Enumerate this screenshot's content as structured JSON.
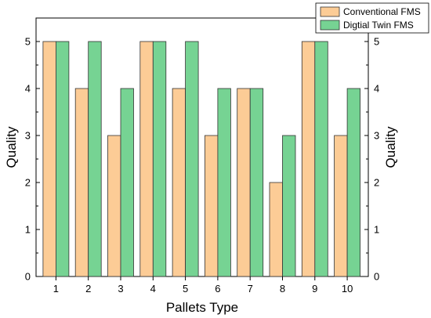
{
  "chart_data": {
    "type": "bar",
    "categories": [
      "1",
      "2",
      "3",
      "4",
      "5",
      "6",
      "7",
      "8",
      "9",
      "10"
    ],
    "series": [
      {
        "name": "Conventional FMS",
        "color": "#FCCC96",
        "values": [
          5,
          4,
          3,
          5,
          4,
          3,
          4,
          2,
          5,
          3
        ]
      },
      {
        "name": "Digtial Twin FMS",
        "color": "#76D393",
        "values": [
          5,
          5,
          4,
          5,
          5,
          4,
          4,
          3,
          5,
          4
        ]
      }
    ],
    "xlabel": "Pallets Type",
    "ylabel": "Quality",
    "ylabel_right": "Quality",
    "ylim": [
      0,
      5.5
    ],
    "yticks": [
      "0",
      "1",
      "2",
      "3",
      "4",
      "5"
    ],
    "yticks_right": [
      "0",
      "1",
      "2",
      "3",
      "4",
      "5"
    ],
    "grid": false,
    "legend_position": "top-right",
    "bar_edge_color": "#333333"
  }
}
